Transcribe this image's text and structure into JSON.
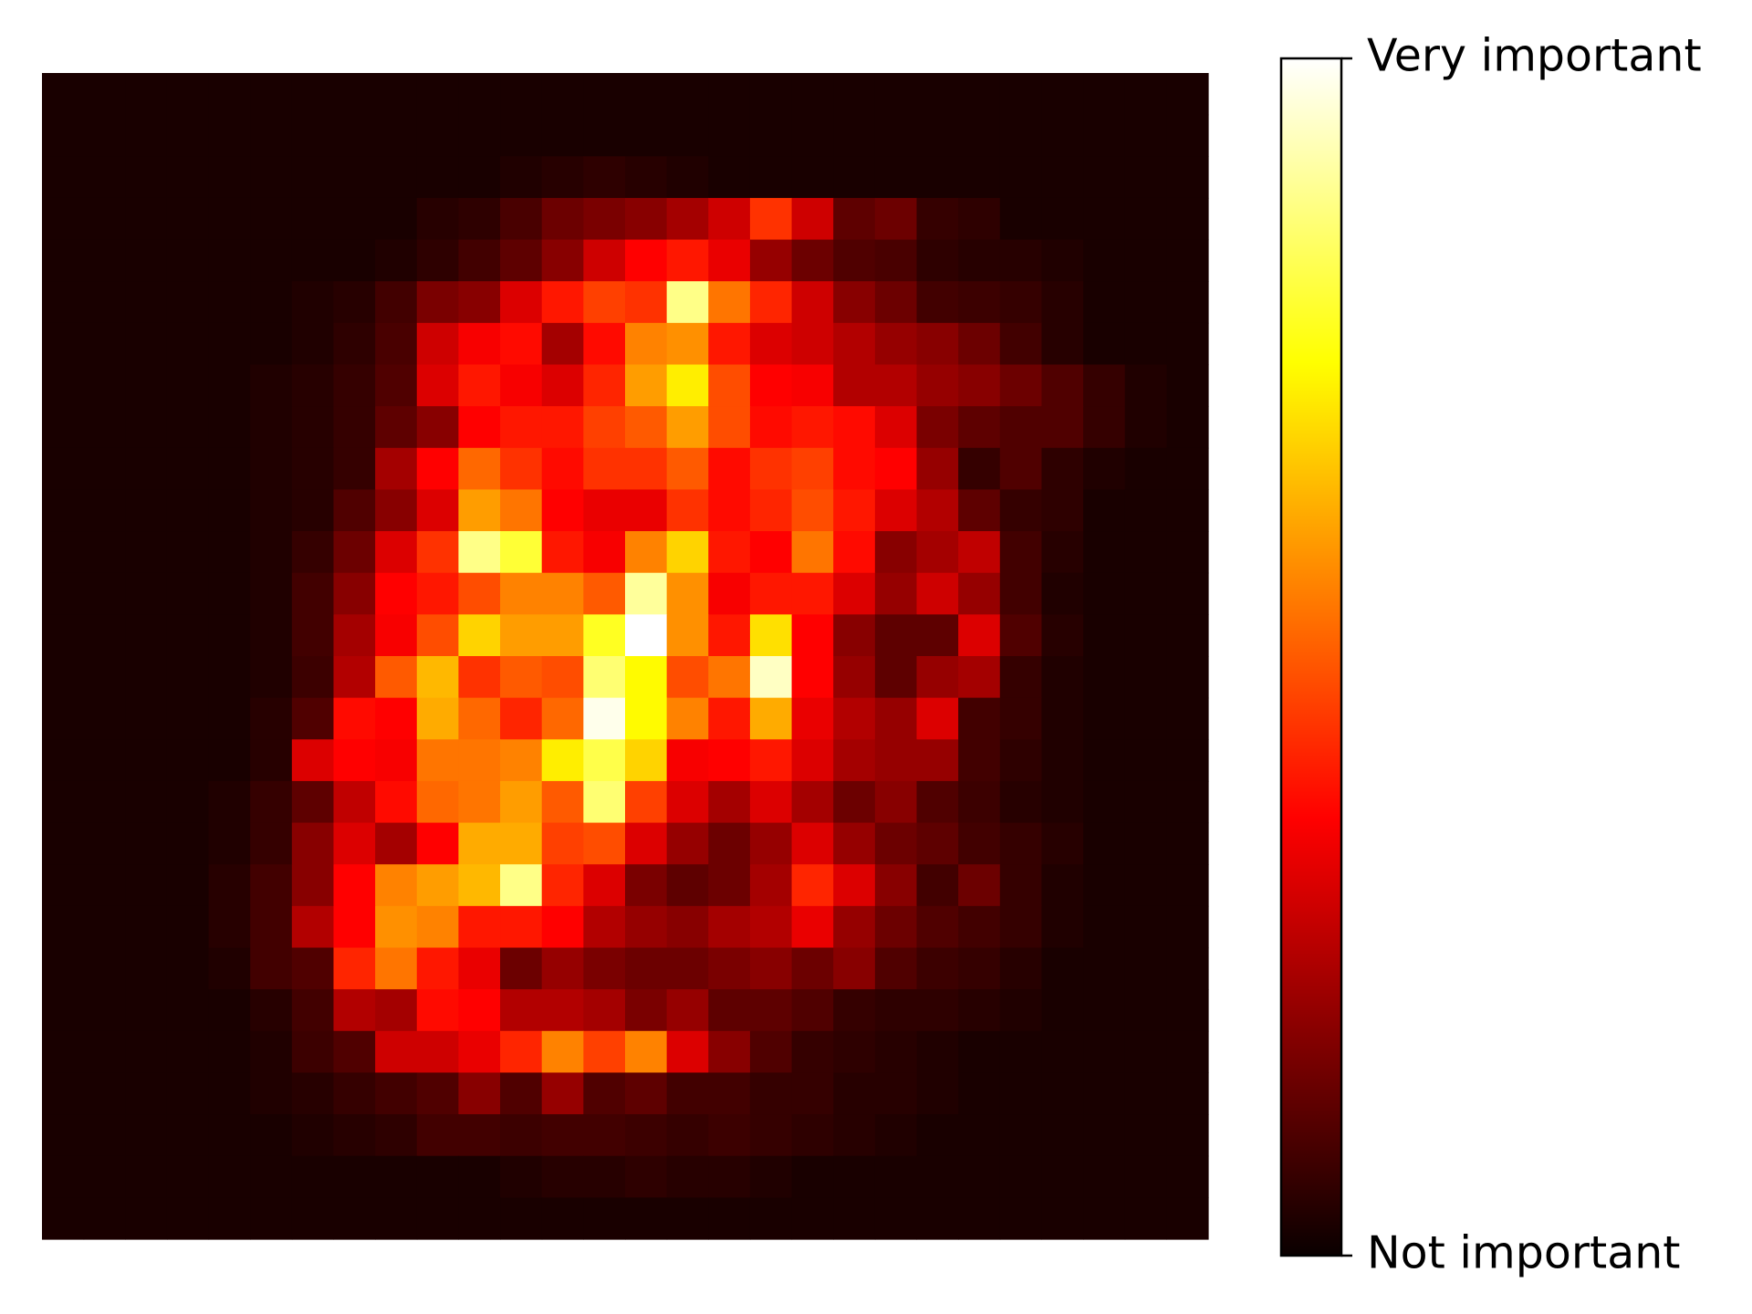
{
  "chart_data": {
    "type": "heatmap",
    "colormap": "hot",
    "grid": false,
    "axes_visible": false,
    "vmin": 0.0,
    "vmax": 1.0,
    "rows": 28,
    "cols": 28,
    "colorbar": {
      "placement": "right",
      "ticks": [
        {
          "value": 1.0,
          "label": "Very important"
        },
        {
          "value": 0.0,
          "label": "Not important"
        }
      ]
    },
    "values": [
      [
        0.02,
        0.02,
        0.02,
        0.02,
        0.02,
        0.02,
        0.02,
        0.02,
        0.02,
        0.02,
        0.02,
        0.02,
        0.02,
        0.02,
        0.02,
        0.02,
        0.02,
        0.02,
        0.02,
        0.02,
        0.02,
        0.02,
        0.02,
        0.02,
        0.02,
        0.02,
        0.02,
        0.02
      ],
      [
        0.02,
        0.02,
        0.02,
        0.02,
        0.02,
        0.02,
        0.02,
        0.02,
        0.02,
        0.02,
        0.02,
        0.02,
        0.02,
        0.02,
        0.02,
        0.02,
        0.02,
        0.02,
        0.02,
        0.02,
        0.02,
        0.02,
        0.02,
        0.02,
        0.02,
        0.02,
        0.02,
        0.02
      ],
      [
        0.02,
        0.02,
        0.02,
        0.02,
        0.02,
        0.02,
        0.02,
        0.02,
        0.02,
        0.02,
        0.02,
        0.03,
        0.04,
        0.05,
        0.04,
        0.03,
        0.02,
        0.02,
        0.02,
        0.02,
        0.02,
        0.02,
        0.02,
        0.02,
        0.02,
        0.02,
        0.02,
        0.02
      ],
      [
        0.02,
        0.02,
        0.02,
        0.02,
        0.02,
        0.02,
        0.02,
        0.02,
        0.02,
        0.04,
        0.05,
        0.09,
        0.14,
        0.16,
        0.18,
        0.22,
        0.28,
        0.44,
        0.28,
        0.12,
        0.14,
        0.06,
        0.05,
        0.02,
        0.02,
        0.02,
        0.02,
        0.02
      ],
      [
        0.02,
        0.02,
        0.02,
        0.02,
        0.02,
        0.02,
        0.02,
        0.02,
        0.03,
        0.05,
        0.08,
        0.12,
        0.18,
        0.28,
        0.36,
        0.4,
        0.32,
        0.2,
        0.14,
        0.1,
        0.09,
        0.05,
        0.04,
        0.04,
        0.03,
        0.02,
        0.02,
        0.02
      ],
      [
        0.02,
        0.02,
        0.02,
        0.02,
        0.02,
        0.02,
        0.03,
        0.04,
        0.08,
        0.16,
        0.18,
        0.3,
        0.4,
        0.46,
        0.44,
        0.88,
        0.54,
        0.42,
        0.28,
        0.18,
        0.14,
        0.08,
        0.07,
        0.06,
        0.04,
        0.02,
        0.02,
        0.02
      ],
      [
        0.02,
        0.02,
        0.02,
        0.02,
        0.02,
        0.02,
        0.03,
        0.05,
        0.09,
        0.28,
        0.34,
        0.38,
        0.22,
        0.38,
        0.56,
        0.58,
        0.4,
        0.3,
        0.28,
        0.24,
        0.2,
        0.18,
        0.14,
        0.08,
        0.04,
        0.02,
        0.02,
        0.02
      ],
      [
        0.02,
        0.02,
        0.02,
        0.02,
        0.02,
        0.03,
        0.04,
        0.06,
        0.1,
        0.3,
        0.4,
        0.34,
        0.3,
        0.42,
        0.6,
        0.72,
        0.48,
        0.36,
        0.34,
        0.24,
        0.24,
        0.2,
        0.18,
        0.14,
        0.1,
        0.06,
        0.03,
        0.02
      ],
      [
        0.02,
        0.02,
        0.02,
        0.02,
        0.02,
        0.03,
        0.04,
        0.06,
        0.12,
        0.18,
        0.36,
        0.4,
        0.4,
        0.46,
        0.5,
        0.6,
        0.48,
        0.38,
        0.4,
        0.38,
        0.3,
        0.16,
        0.12,
        0.1,
        0.1,
        0.06,
        0.03,
        0.02
      ],
      [
        0.02,
        0.02,
        0.02,
        0.02,
        0.02,
        0.03,
        0.04,
        0.06,
        0.22,
        0.36,
        0.52,
        0.44,
        0.38,
        0.44,
        0.44,
        0.5,
        0.38,
        0.44,
        0.46,
        0.38,
        0.36,
        0.2,
        0.06,
        0.1,
        0.05,
        0.03,
        0.02,
        0.02
      ],
      [
        0.02,
        0.02,
        0.02,
        0.02,
        0.02,
        0.03,
        0.04,
        0.1,
        0.18,
        0.3,
        0.6,
        0.54,
        0.36,
        0.32,
        0.32,
        0.44,
        0.38,
        0.42,
        0.48,
        0.4,
        0.3,
        0.24,
        0.12,
        0.06,
        0.05,
        0.02,
        0.02,
        0.02
      ],
      [
        0.02,
        0.02,
        0.02,
        0.02,
        0.02,
        0.03,
        0.06,
        0.14,
        0.3,
        0.44,
        0.88,
        0.8,
        0.4,
        0.34,
        0.56,
        0.68,
        0.4,
        0.36,
        0.54,
        0.38,
        0.18,
        0.22,
        0.26,
        0.08,
        0.04,
        0.02,
        0.02,
        0.02
      ],
      [
        0.02,
        0.02,
        0.02,
        0.02,
        0.02,
        0.03,
        0.08,
        0.18,
        0.36,
        0.4,
        0.48,
        0.56,
        0.56,
        0.5,
        0.9,
        0.58,
        0.34,
        0.4,
        0.4,
        0.3,
        0.2,
        0.28,
        0.2,
        0.08,
        0.03,
        0.02,
        0.02,
        0.02
      ],
      [
        0.02,
        0.02,
        0.02,
        0.02,
        0.02,
        0.03,
        0.08,
        0.22,
        0.34,
        0.48,
        0.68,
        0.6,
        0.6,
        0.78,
        1.0,
        0.58,
        0.4,
        0.7,
        0.36,
        0.18,
        0.12,
        0.12,
        0.3,
        0.1,
        0.04,
        0.02,
        0.02,
        0.02
      ],
      [
        0.02,
        0.02,
        0.02,
        0.02,
        0.02,
        0.03,
        0.07,
        0.24,
        0.5,
        0.64,
        0.44,
        0.5,
        0.48,
        0.86,
        0.74,
        0.48,
        0.54,
        0.94,
        0.36,
        0.2,
        0.12,
        0.2,
        0.22,
        0.06,
        0.03,
        0.02,
        0.02,
        0.02
      ],
      [
        0.02,
        0.02,
        0.02,
        0.02,
        0.02,
        0.04,
        0.1,
        0.38,
        0.36,
        0.62,
        0.52,
        0.42,
        0.52,
        0.98,
        0.74,
        0.56,
        0.4,
        0.62,
        0.32,
        0.24,
        0.2,
        0.3,
        0.08,
        0.06,
        0.03,
        0.02,
        0.02,
        0.02
      ],
      [
        0.02,
        0.02,
        0.02,
        0.02,
        0.02,
        0.04,
        0.3,
        0.36,
        0.34,
        0.54,
        0.54,
        0.56,
        0.72,
        0.82,
        0.68,
        0.34,
        0.36,
        0.4,
        0.3,
        0.22,
        0.2,
        0.2,
        0.08,
        0.05,
        0.03,
        0.02,
        0.02,
        0.02
      ],
      [
        0.02,
        0.02,
        0.02,
        0.02,
        0.03,
        0.06,
        0.12,
        0.26,
        0.38,
        0.52,
        0.54,
        0.6,
        0.5,
        0.86,
        0.46,
        0.3,
        0.22,
        0.3,
        0.22,
        0.14,
        0.18,
        0.1,
        0.07,
        0.04,
        0.03,
        0.02,
        0.02,
        0.02
      ],
      [
        0.02,
        0.02,
        0.02,
        0.02,
        0.03,
        0.06,
        0.18,
        0.3,
        0.22,
        0.36,
        0.62,
        0.62,
        0.46,
        0.48,
        0.3,
        0.2,
        0.14,
        0.2,
        0.3,
        0.2,
        0.14,
        0.12,
        0.08,
        0.06,
        0.04,
        0.02,
        0.02,
        0.02
      ],
      [
        0.02,
        0.02,
        0.02,
        0.02,
        0.04,
        0.08,
        0.18,
        0.36,
        0.56,
        0.6,
        0.64,
        0.88,
        0.42,
        0.3,
        0.16,
        0.12,
        0.14,
        0.22,
        0.42,
        0.3,
        0.18,
        0.08,
        0.14,
        0.06,
        0.03,
        0.02,
        0.02,
        0.02
      ],
      [
        0.02,
        0.02,
        0.02,
        0.02,
        0.04,
        0.08,
        0.24,
        0.36,
        0.58,
        0.56,
        0.4,
        0.4,
        0.36,
        0.24,
        0.2,
        0.18,
        0.22,
        0.24,
        0.32,
        0.2,
        0.14,
        0.1,
        0.08,
        0.06,
        0.03,
        0.02,
        0.02,
        0.02
      ],
      [
        0.02,
        0.02,
        0.02,
        0.02,
        0.03,
        0.08,
        0.1,
        0.42,
        0.54,
        0.4,
        0.32,
        0.14,
        0.2,
        0.16,
        0.14,
        0.14,
        0.16,
        0.18,
        0.14,
        0.18,
        0.1,
        0.07,
        0.06,
        0.04,
        0.02,
        0.02,
        0.02,
        0.02
      ],
      [
        0.02,
        0.02,
        0.02,
        0.02,
        0.02,
        0.04,
        0.08,
        0.24,
        0.22,
        0.38,
        0.36,
        0.24,
        0.24,
        0.22,
        0.16,
        0.2,
        0.12,
        0.12,
        0.1,
        0.06,
        0.05,
        0.05,
        0.04,
        0.03,
        0.02,
        0.02,
        0.02,
        0.02
      ],
      [
        0.02,
        0.02,
        0.02,
        0.02,
        0.02,
        0.03,
        0.07,
        0.1,
        0.28,
        0.28,
        0.32,
        0.42,
        0.56,
        0.46,
        0.56,
        0.3,
        0.18,
        0.1,
        0.06,
        0.05,
        0.04,
        0.03,
        0.02,
        0.02,
        0.02,
        0.02,
        0.02,
        0.02
      ],
      [
        0.02,
        0.02,
        0.02,
        0.02,
        0.02,
        0.03,
        0.04,
        0.06,
        0.08,
        0.1,
        0.18,
        0.1,
        0.2,
        0.1,
        0.12,
        0.08,
        0.08,
        0.06,
        0.06,
        0.04,
        0.04,
        0.03,
        0.02,
        0.02,
        0.02,
        0.02,
        0.02,
        0.02
      ],
      [
        0.02,
        0.02,
        0.02,
        0.02,
        0.02,
        0.02,
        0.03,
        0.04,
        0.05,
        0.08,
        0.08,
        0.07,
        0.08,
        0.08,
        0.07,
        0.06,
        0.07,
        0.06,
        0.05,
        0.04,
        0.03,
        0.02,
        0.02,
        0.02,
        0.02,
        0.02,
        0.02,
        0.02
      ],
      [
        0.02,
        0.02,
        0.02,
        0.02,
        0.02,
        0.02,
        0.02,
        0.02,
        0.02,
        0.02,
        0.02,
        0.03,
        0.04,
        0.04,
        0.05,
        0.04,
        0.04,
        0.03,
        0.02,
        0.02,
        0.02,
        0.02,
        0.02,
        0.02,
        0.02,
        0.02,
        0.02,
        0.02
      ],
      [
        0.02,
        0.02,
        0.02,
        0.02,
        0.02,
        0.02,
        0.02,
        0.02,
        0.02,
        0.02,
        0.02,
        0.02,
        0.02,
        0.02,
        0.02,
        0.02,
        0.02,
        0.02,
        0.02,
        0.02,
        0.02,
        0.02,
        0.02,
        0.02,
        0.02,
        0.02,
        0.02,
        0.02
      ]
    ]
  }
}
